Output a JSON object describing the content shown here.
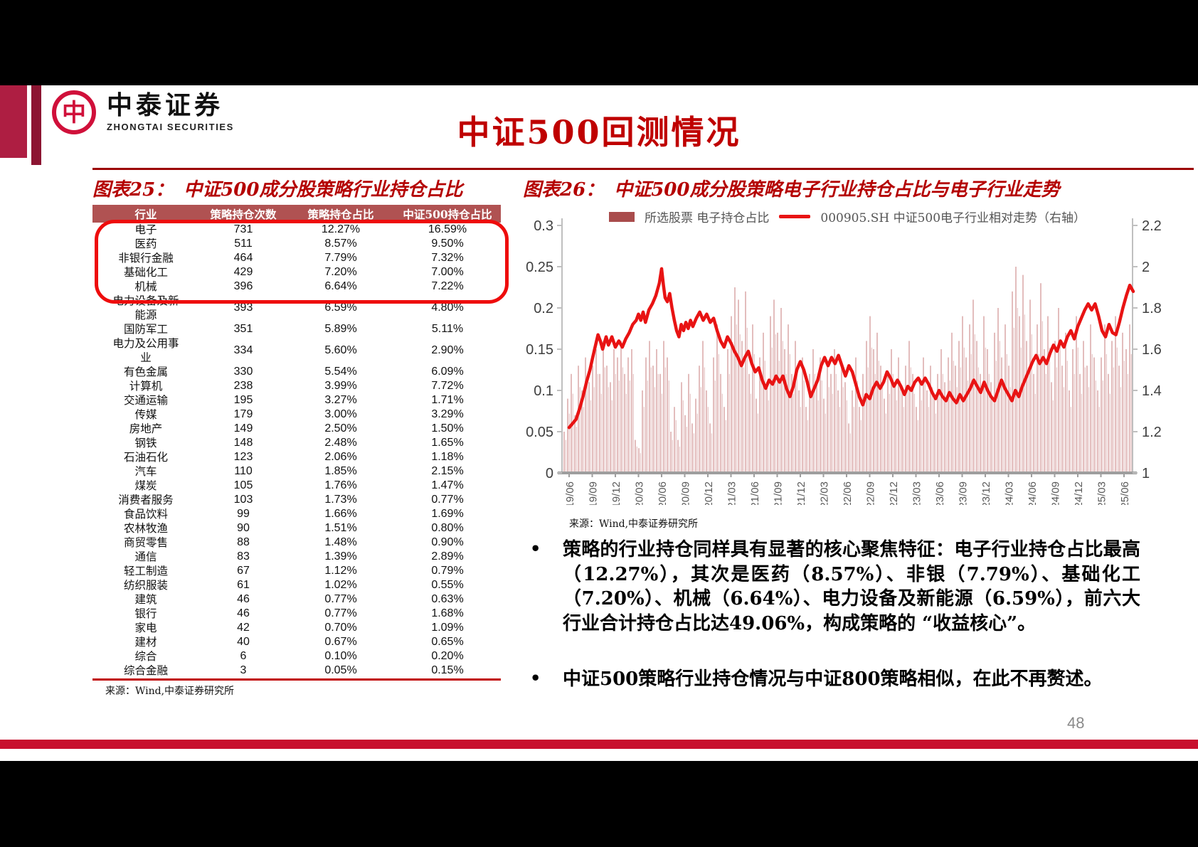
{
  "slide": {
    "title": "中证500回测情况",
    "page_number": "48",
    "logo": {
      "cn": "中泰证券",
      "en": "ZHONGTAI SECURITIES",
      "mark": "中"
    }
  },
  "figure25": {
    "label": "图表25：",
    "title": "中证500成分股策略行业持仓占比",
    "columns": [
      "行业",
      "策略持仓次数",
      "策略持仓占比",
      "中证500持仓占比"
    ],
    "rows": [
      [
        "电子",
        "731",
        "12.27%",
        "16.59%"
      ],
      [
        "医药",
        "511",
        "8.57%",
        "9.50%"
      ],
      [
        "非银行金融",
        "464",
        "7.79%",
        "7.32%"
      ],
      [
        "基础化工",
        "429",
        "7.20%",
        "7.00%"
      ],
      [
        "机械",
        "396",
        "6.64%",
        "7.22%"
      ],
      [
        "电力设备及新能源",
        "393",
        "6.59%",
        "4.80%"
      ],
      [
        "国防军工",
        "351",
        "5.89%",
        "5.11%"
      ],
      [
        "电力及公用事业",
        "334",
        "5.60%",
        "2.90%"
      ],
      [
        "有色金属",
        "330",
        "5.54%",
        "6.09%"
      ],
      [
        "计算机",
        "238",
        "3.99%",
        "7.72%"
      ],
      [
        "交通运输",
        "195",
        "3.27%",
        "1.71%"
      ],
      [
        "传媒",
        "179",
        "3.00%",
        "3.29%"
      ],
      [
        "房地产",
        "149",
        "2.50%",
        "1.50%"
      ],
      [
        "钢铁",
        "148",
        "2.48%",
        "1.65%"
      ],
      [
        "石油石化",
        "123",
        "2.06%",
        "1.18%"
      ],
      [
        "汽车",
        "110",
        "1.85%",
        "2.15%"
      ],
      [
        "煤炭",
        "105",
        "1.76%",
        "1.47%"
      ],
      [
        "消费者服务",
        "103",
        "1.73%",
        "0.77%"
      ],
      [
        "食品饮料",
        "99",
        "1.66%",
        "1.69%"
      ],
      [
        "农林牧渔",
        "90",
        "1.51%",
        "0.80%"
      ],
      [
        "商贸零售",
        "88",
        "1.48%",
        "0.90%"
      ],
      [
        "通信",
        "83",
        "1.39%",
        "2.89%"
      ],
      [
        "轻工制造",
        "67",
        "1.12%",
        "0.79%"
      ],
      [
        "纺织服装",
        "61",
        "1.02%",
        "0.55%"
      ],
      [
        "建筑",
        "46",
        "0.77%",
        "0.63%"
      ],
      [
        "银行",
        "46",
        "0.77%",
        "1.68%"
      ],
      [
        "家电",
        "42",
        "0.70%",
        "1.09%"
      ],
      [
        "建材",
        "40",
        "0.67%",
        "0.65%"
      ],
      [
        "综合",
        "6",
        "0.10%",
        "0.20%"
      ],
      [
        "综合金融",
        "3",
        "0.05%",
        "0.15%"
      ]
    ],
    "highlight_row_count": 5,
    "source": "来源：Wind,中泰证券研究所"
  },
  "figure26": {
    "label": "图表26：",
    "title": "中证500成分股策略电子行业持仓占比与电子行业走势",
    "source": "来源：Wind,中泰证券研究所",
    "chart_data": {
      "type": "bar+line",
      "legend": [
        {
          "label": "所选股票 电子持仓占比",
          "type": "bar",
          "color": "#a94c4c"
        },
        {
          "label": "000905.SH 中证500电子行业相对走势（右轴）",
          "type": "line",
          "color": "#e81313"
        }
      ],
      "left_axis": {
        "ticks": [
          "0.3",
          "0.25",
          "0.2",
          "0.15",
          "0.1",
          "0.05",
          "0"
        ],
        "range": [
          0,
          0.3
        ]
      },
      "right_axis": {
        "ticks": [
          "2.2",
          "2",
          "1.8",
          "1.6",
          "1.4",
          "1.2",
          "1"
        ],
        "range": [
          1,
          2.2
        ]
      },
      "x_labels": [
        "19/06",
        "19/09",
        "19/12",
        "20/03",
        "20/06",
        "20/09",
        "20/12",
        "21/03",
        "21/06",
        "21/09",
        "21/12",
        "22/03",
        "22/06",
        "22/09",
        "22/12",
        "23/03",
        "23/06",
        "23/09",
        "23/12",
        "24/03",
        "24/06",
        "24/09",
        "24/12",
        "25/03",
        "25/06"
      ],
      "bar_color": "#e0b6b6",
      "line_color": "#e81313",
      "bars": [
        0.05,
        0.09,
        0.12,
        0.07,
        0.13,
        0.1,
        0.14,
        0.11,
        0.13,
        0.15,
        0.12,
        0.16,
        0.13,
        0.11,
        0.15,
        0.14,
        0.16,
        0.12,
        0.14,
        0.15,
        0.04,
        0.03,
        0.1,
        0.14,
        0.16,
        0.13,
        0.15,
        0.12,
        0.16,
        0.14,
        0.05,
        0.08,
        0.04,
        0.11,
        0.07,
        0.12,
        0.06,
        0.09,
        0.13,
        0.16,
        0.1,
        0.06,
        0.14,
        0.18,
        0.12,
        0.08,
        0.15,
        0.19,
        0.225,
        0.21,
        0.16,
        0.22,
        0.12,
        0.18,
        0.09,
        0.14,
        0.17,
        0.11,
        0.19,
        0.21,
        0.17,
        0.2,
        0.15,
        0.18,
        0.12,
        0.16,
        0.1,
        0.14,
        0.08,
        0.12,
        0.15,
        0.11,
        0.14,
        0.09,
        0.13,
        0.12,
        0.15,
        0.1,
        0.13,
        0.11,
        0.06,
        0.1,
        0.14,
        0.08,
        0.12,
        0.16,
        0.19,
        0.15,
        0.17,
        0.13,
        0.09,
        0.12,
        0.15,
        0.11,
        0.14,
        0.1,
        0.13,
        0.16,
        0.12,
        0.08,
        0.11,
        0.14,
        0.1,
        0.13,
        0.09,
        0.12,
        0.15,
        0.11,
        0.14,
        0.17,
        0.13,
        0.16,
        0.19,
        0.14,
        0.18,
        0.21,
        0.16,
        0.12,
        0.19,
        0.15,
        0.11,
        0.17,
        0.2,
        0.14,
        0.18,
        0.13,
        0.22,
        0.25,
        0.19,
        0.24,
        0.16,
        0.21,
        0.12,
        0.18,
        0.23,
        0.15,
        0.19,
        0.11,
        0.16,
        0.2,
        0.13,
        0.17,
        0.1,
        0.15,
        0.19,
        0.12,
        0.16,
        0.13,
        0.18,
        0.14,
        0.1,
        0.14,
        0.18,
        0.12,
        0.16,
        0.19,
        0.13,
        0.17,
        0.15,
        0.18
      ],
      "line": [
        [
          0,
          1.22
        ],
        [
          0.15,
          1.24
        ],
        [
          0.3,
          1.26
        ],
        [
          0.45,
          1.31
        ],
        [
          0.6,
          1.37
        ],
        [
          0.75,
          1.44
        ],
        [
          0.9,
          1.5
        ],
        [
          1.0,
          1.55
        ],
        [
          1.1,
          1.6
        ],
        [
          1.25,
          1.67
        ],
        [
          1.35,
          1.64
        ],
        [
          1.45,
          1.6
        ],
        [
          1.6,
          1.66
        ],
        [
          1.7,
          1.62
        ],
        [
          1.85,
          1.66
        ],
        [
          2.0,
          1.61
        ],
        [
          2.15,
          1.64
        ],
        [
          2.3,
          1.61
        ],
        [
          2.45,
          1.65
        ],
        [
          2.6,
          1.68
        ],
        [
          2.75,
          1.72
        ],
        [
          2.9,
          1.74
        ],
        [
          3.0,
          1.77
        ],
        [
          3.1,
          1.74
        ],
        [
          3.2,
          1.78
        ],
        [
          3.3,
          1.73
        ],
        [
          3.45,
          1.79
        ],
        [
          3.6,
          1.82
        ],
        [
          3.75,
          1.86
        ],
        [
          3.9,
          1.92
        ],
        [
          4.0,
          1.99
        ],
        [
          4.08,
          1.91
        ],
        [
          4.15,
          1.85
        ],
        [
          4.25,
          1.83
        ],
        [
          4.35,
          1.87
        ],
        [
          4.45,
          1.8
        ],
        [
          4.55,
          1.74
        ],
        [
          4.65,
          1.69
        ],
        [
          4.75,
          1.66
        ],
        [
          4.85,
          1.72
        ],
        [
          4.95,
          1.69
        ],
        [
          5.05,
          1.73
        ],
        [
          5.15,
          1.7
        ],
        [
          5.25,
          1.74
        ],
        [
          5.35,
          1.71
        ],
        [
          5.5,
          1.75
        ],
        [
          5.65,
          1.78
        ],
        [
          5.8,
          1.74
        ],
        [
          5.95,
          1.77
        ],
        [
          6.1,
          1.73
        ],
        [
          6.25,
          1.75
        ],
        [
          6.4,
          1.69
        ],
        [
          6.55,
          1.64
        ],
        [
          6.7,
          1.61
        ],
        [
          6.85,
          1.66
        ],
        [
          7.0,
          1.63
        ],
        [
          7.15,
          1.59
        ],
        [
          7.3,
          1.56
        ],
        [
          7.45,
          1.52
        ],
        [
          7.6,
          1.56
        ],
        [
          7.75,
          1.59
        ],
        [
          7.9,
          1.53
        ],
        [
          8.05,
          1.49
        ],
        [
          8.2,
          1.51
        ],
        [
          8.35,
          1.45
        ],
        [
          8.5,
          1.41
        ],
        [
          8.65,
          1.45
        ],
        [
          8.8,
          1.43
        ],
        [
          8.95,
          1.47
        ],
        [
          9.1,
          1.44
        ],
        [
          9.25,
          1.47
        ],
        [
          9.4,
          1.41
        ],
        [
          9.55,
          1.37
        ],
        [
          9.7,
          1.42
        ],
        [
          9.85,
          1.5
        ],
        [
          10.0,
          1.54
        ],
        [
          10.15,
          1.5
        ],
        [
          10.3,
          1.44
        ],
        [
          10.45,
          1.37
        ],
        [
          10.6,
          1.41
        ],
        [
          10.75,
          1.45
        ],
        [
          10.9,
          1.52
        ],
        [
          11.05,
          1.56
        ],
        [
          11.2,
          1.52
        ],
        [
          11.35,
          1.56
        ],
        [
          11.5,
          1.53
        ],
        [
          11.65,
          1.57
        ],
        [
          11.8,
          1.52
        ],
        [
          11.95,
          1.47
        ],
        [
          12.1,
          1.52
        ],
        [
          12.25,
          1.49
        ],
        [
          12.4,
          1.43
        ],
        [
          12.55,
          1.37
        ],
        [
          12.7,
          1.33
        ],
        [
          12.85,
          1.38
        ],
        [
          13.0,
          1.36
        ],
        [
          13.15,
          1.41
        ],
        [
          13.3,
          1.44
        ],
        [
          13.45,
          1.41
        ],
        [
          13.6,
          1.44
        ],
        [
          13.75,
          1.49
        ],
        [
          13.9,
          1.46
        ],
        [
          14.05,
          1.42
        ],
        [
          14.2,
          1.45
        ],
        [
          14.35,
          1.42
        ],
        [
          14.5,
          1.38
        ],
        [
          14.65,
          1.42
        ],
        [
          14.8,
          1.4
        ],
        [
          14.95,
          1.44
        ],
        [
          15.1,
          1.46
        ],
        [
          15.25,
          1.43
        ],
        [
          15.4,
          1.46
        ],
        [
          15.55,
          1.43
        ],
        [
          15.7,
          1.39
        ],
        [
          15.85,
          1.36
        ],
        [
          16.0,
          1.4
        ],
        [
          16.15,
          1.37
        ],
        [
          16.3,
          1.35
        ],
        [
          16.45,
          1.39
        ],
        [
          16.6,
          1.36
        ],
        [
          16.75,
          1.34
        ],
        [
          16.9,
          1.38
        ],
        [
          17.05,
          1.35
        ],
        [
          17.2,
          1.38
        ],
        [
          17.35,
          1.41
        ],
        [
          17.5,
          1.45
        ],
        [
          17.65,
          1.42
        ],
        [
          17.8,
          1.39
        ],
        [
          17.95,
          1.44
        ],
        [
          18.1,
          1.4
        ],
        [
          18.25,
          1.37
        ],
        [
          18.4,
          1.35
        ],
        [
          18.55,
          1.4
        ],
        [
          18.7,
          1.45
        ],
        [
          18.85,
          1.41
        ],
        [
          19.0,
          1.38
        ],
        [
          19.15,
          1.35
        ],
        [
          19.3,
          1.4
        ],
        [
          19.45,
          1.37
        ],
        [
          19.6,
          1.42
        ],
        [
          19.75,
          1.46
        ],
        [
          19.9,
          1.5
        ],
        [
          20.05,
          1.54
        ],
        [
          20.2,
          1.57
        ],
        [
          20.35,
          1.53
        ],
        [
          20.5,
          1.56
        ],
        [
          20.65,
          1.53
        ],
        [
          20.8,
          1.58
        ],
        [
          20.95,
          1.62
        ],
        [
          21.1,
          1.59
        ],
        [
          21.25,
          1.64
        ],
        [
          21.4,
          1.61
        ],
        [
          21.55,
          1.66
        ],
        [
          21.7,
          1.69
        ],
        [
          21.85,
          1.65
        ],
        [
          22.0,
          1.71
        ],
        [
          22.15,
          1.75
        ],
        [
          22.3,
          1.79
        ],
        [
          22.45,
          1.82
        ],
        [
          22.6,
          1.79
        ],
        [
          22.75,
          1.82
        ],
        [
          22.9,
          1.76
        ],
        [
          23.05,
          1.69
        ],
        [
          23.2,
          1.66
        ],
        [
          23.35,
          1.72
        ],
        [
          23.5,
          1.68
        ],
        [
          23.65,
          1.67
        ],
        [
          23.8,
          1.73
        ],
        [
          23.95,
          1.8
        ],
        [
          24.1,
          1.86
        ],
        [
          24.25,
          1.91
        ],
        [
          24.4,
          1.88
        ]
      ]
    }
  },
  "bullets": [
    "策略的行业持仓同样具有显著的核心聚焦特征：电子行业持仓占比最高（12.27%），其次是医药（8.57%）、非银（7.79%）、基础化工（7.20%）、机械（6.64%）、电力设备及新能源（6.59%），前六大行业合计持仓占比达49.06%，构成策略的 “收益核心”。",
    "中证500策略行业持仓情况与中证800策略相似，在此不再赘述。"
  ]
}
